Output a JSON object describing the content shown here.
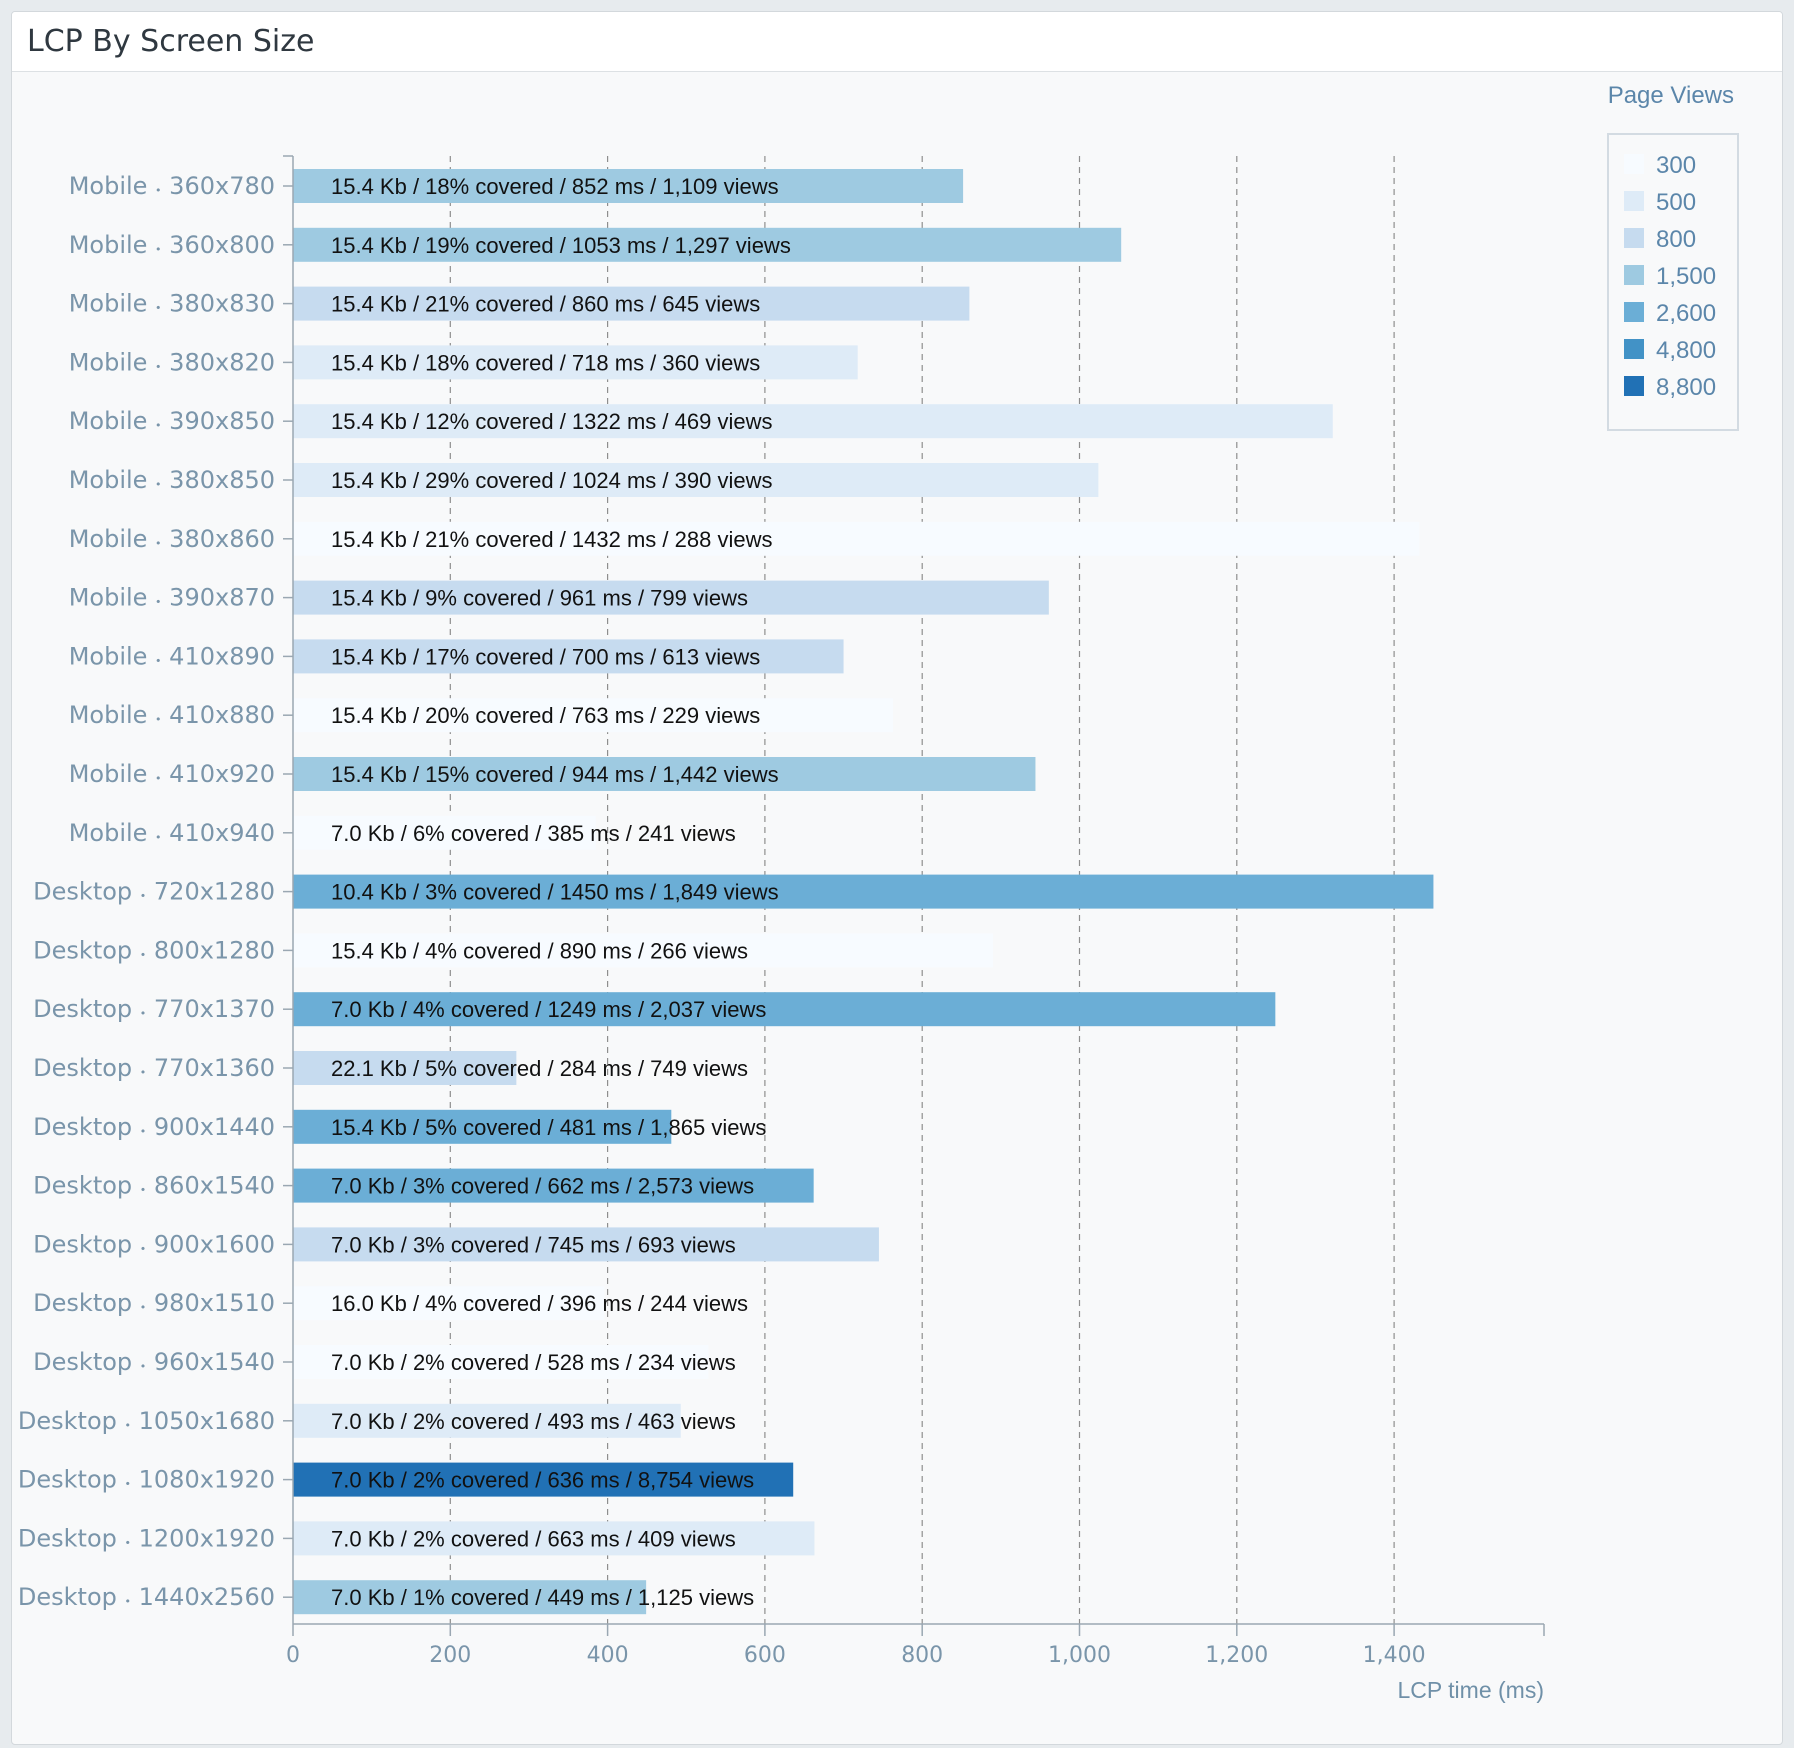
{
  "panel": {
    "title": "LCP By Screen Size"
  },
  "chart_data": {
    "type": "bar",
    "orientation": "horizontal",
    "xlabel": "LCP time (ms)",
    "xlim": [
      0,
      1590
    ],
    "xticks": [
      0,
      200,
      400,
      600,
      800,
      1000,
      1200,
      1400
    ],
    "xtick_labels": [
      "0",
      "200",
      "400",
      "600",
      "800",
      "1,000",
      "1,200",
      "1,400"
    ],
    "grid": "vertical-dashed",
    "legend": {
      "title": "Page Views",
      "position": "top-right",
      "entries": [
        {
          "label": "300",
          "color": "#f7fbff"
        },
        {
          "label": "500",
          "color": "#deebf7"
        },
        {
          "label": "800",
          "color": "#c6dbef"
        },
        {
          "label": "1,500",
          "color": "#9ecae1"
        },
        {
          "label": "2,600",
          "color": "#6baed6"
        },
        {
          "label": "4,800",
          "color": "#4292c6"
        },
        {
          "label": "8,800",
          "color": "#2171b5"
        }
      ]
    },
    "categories": [
      {
        "type": "Mobile",
        "size": "360x780"
      },
      {
        "type": "Mobile",
        "size": "360x800"
      },
      {
        "type": "Mobile",
        "size": "380x830"
      },
      {
        "type": "Mobile",
        "size": "380x820"
      },
      {
        "type": "Mobile",
        "size": "390x850"
      },
      {
        "type": "Mobile",
        "size": "380x850"
      },
      {
        "type": "Mobile",
        "size": "380x860"
      },
      {
        "type": "Mobile",
        "size": "390x870"
      },
      {
        "type": "Mobile",
        "size": "410x890"
      },
      {
        "type": "Mobile",
        "size": "410x880"
      },
      {
        "type": "Mobile",
        "size": "410x920"
      },
      {
        "type": "Mobile",
        "size": "410x940"
      },
      {
        "type": "Desktop",
        "size": "720x1280"
      },
      {
        "type": "Desktop",
        "size": "800x1280"
      },
      {
        "type": "Desktop",
        "size": "770x1370"
      },
      {
        "type": "Desktop",
        "size": "770x1360"
      },
      {
        "type": "Desktop",
        "size": "900x1440"
      },
      {
        "type": "Desktop",
        "size": "860x1540"
      },
      {
        "type": "Desktop",
        "size": "900x1600"
      },
      {
        "type": "Desktop",
        "size": "980x1510"
      },
      {
        "type": "Desktop",
        "size": "960x1540"
      },
      {
        "type": "Desktop",
        "size": "1050x1680"
      },
      {
        "type": "Desktop",
        "size": "1080x1920"
      },
      {
        "type": "Desktop",
        "size": "1200x1920"
      },
      {
        "type": "Desktop",
        "size": "1440x2560"
      }
    ],
    "values": [
      852,
      1053,
      860,
      718,
      1322,
      1024,
      1432,
      961,
      700,
      763,
      944,
      385,
      1450,
      890,
      1249,
      284,
      481,
      662,
      745,
      396,
      528,
      493,
      636,
      663,
      449
    ],
    "views": [
      1109,
      1297,
      645,
      360,
      469,
      390,
      288,
      799,
      613,
      229,
      1442,
      241,
      1849,
      266,
      2037,
      749,
      1865,
      2573,
      693,
      244,
      234,
      463,
      8754,
      409,
      1125
    ],
    "bar_labels": [
      "15.4 Kb / 18% covered / 852 ms / 1,109 views",
      "15.4 Kb / 19% covered / 1053 ms / 1,297 views",
      "15.4 Kb / 21% covered / 860 ms / 645 views",
      "15.4 Kb / 18% covered / 718 ms / 360 views",
      "15.4 Kb / 12% covered / 1322 ms / 469 views",
      "15.4 Kb / 29% covered / 1024 ms / 390 views",
      "15.4 Kb / 21% covered / 1432 ms / 288 views",
      "15.4 Kb / 9% covered / 961 ms / 799 views",
      "15.4 Kb / 17% covered / 700 ms / 613 views",
      "15.4 Kb / 20% covered / 763 ms / 229 views",
      "15.4 Kb / 15% covered / 944 ms / 1,442 views",
      "7.0 Kb / 6% covered / 385 ms / 241 views",
      "10.4 Kb / 3% covered / 1450 ms / 1,849 views",
      "15.4 Kb / 4% covered / 890 ms / 266 views",
      "7.0 Kb / 4% covered / 1249 ms / 2,037 views",
      "22.1 Kb / 5% covered / 284 ms / 749 views",
      "15.4 Kb / 5% covered / 481 ms / 1,865 views",
      "7.0 Kb / 3% covered / 662 ms / 2,573 views",
      "7.0 Kb / 3% covered / 745 ms / 693 views",
      "16.0 Kb / 4% covered / 396 ms / 244 views",
      "7.0 Kb / 2% covered / 528 ms / 234 views",
      "7.0 Kb / 2% covered / 493 ms / 463 views",
      "7.0 Kb / 2% covered / 636 ms / 8,754 views",
      "7.0 Kb / 2% covered / 663 ms / 409 views",
      "7.0 Kb / 1% covered / 449 ms / 1,125 views"
    ],
    "colors": [
      "#9ecae1",
      "#9ecae1",
      "#c6dbef",
      "#deebf7",
      "#deebf7",
      "#deebf7",
      "#f7fbff",
      "#c6dbef",
      "#c6dbef",
      "#f7fbff",
      "#9ecae1",
      "#f7fbff",
      "#6baed6",
      "#f7fbff",
      "#6baed6",
      "#c6dbef",
      "#6baed6",
      "#6baed6",
      "#c6dbef",
      "#f7fbff",
      "#f7fbff",
      "#deebf7",
      "#2171b5",
      "#deebf7",
      "#9ecae1"
    ]
  }
}
